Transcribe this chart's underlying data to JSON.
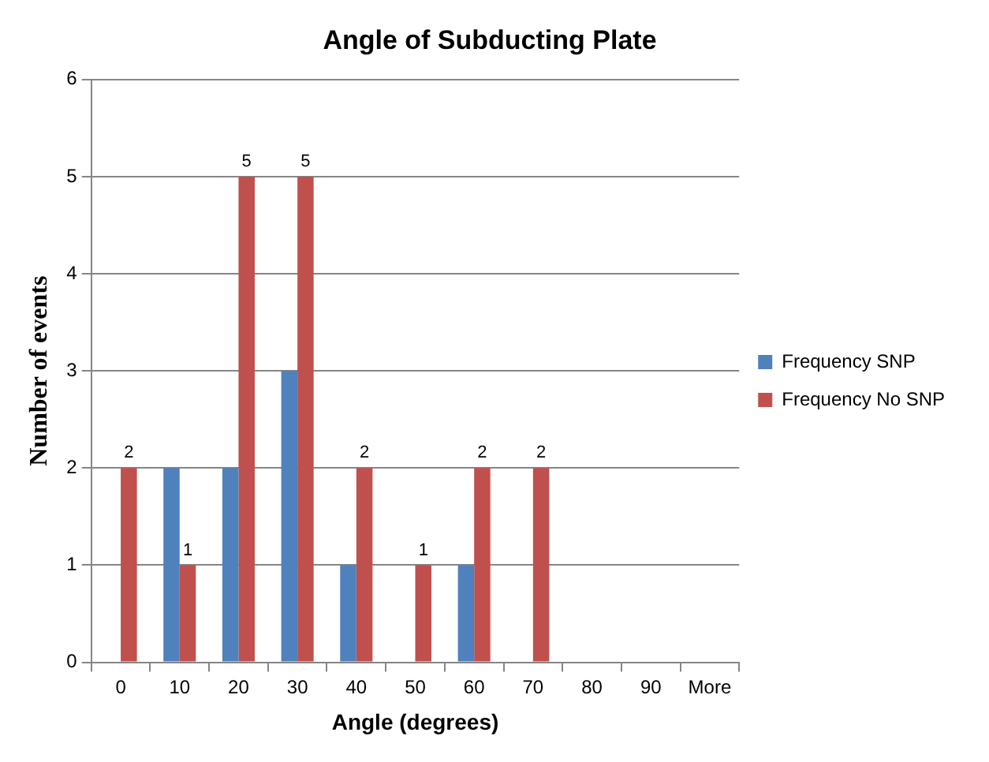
{
  "chart_data": {
    "type": "bar",
    "title": "Angle of Subducting Plate",
    "xlabel": "Angle (degrees)",
    "ylabel": "Number of events",
    "categories": [
      "0",
      "10",
      "20",
      "30",
      "40",
      "50",
      "60",
      "70",
      "80",
      "90",
      "More"
    ],
    "series": [
      {
        "name": "Frequency SNP",
        "color": "#4f81bd",
        "values": [
          0,
          2,
          2,
          3,
          1,
          0,
          1,
          0,
          0,
          0,
          0
        ]
      },
      {
        "name": "Frequency No SNP",
        "color": "#c0504d",
        "values": [
          2,
          1,
          5,
          5,
          2,
          1,
          2,
          2,
          0,
          0,
          0
        ],
        "value_labels": [
          "2",
          "1",
          "5",
          "5",
          "2",
          "1",
          "2",
          "2",
          null,
          null,
          null
        ]
      }
    ],
    "ylim": [
      0,
      6
    ],
    "yticks": [
      0,
      1,
      2,
      3,
      4,
      5,
      6
    ],
    "grid": "y",
    "legend": "right"
  }
}
